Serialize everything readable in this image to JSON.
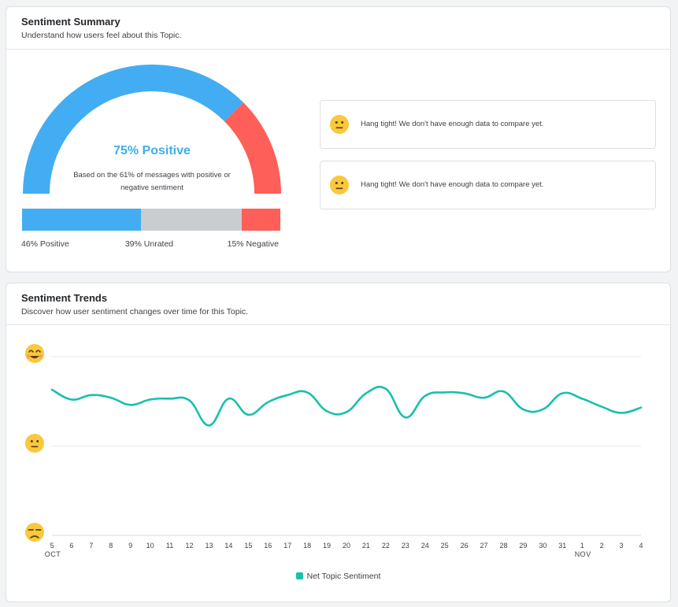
{
  "summary": {
    "title": "Sentiment Summary",
    "subtitle": "Understand how users feel about this Topic.",
    "gauge": {
      "positive_fraction": 0.75,
      "value_label": "75% Positive",
      "description": "Based on the 61% of messages with positive or negative sentiment",
      "positive_color": "#42adf2",
      "negative_color": "#fe5f58"
    },
    "breakdown": [
      {
        "name": "positive",
        "percent": 46,
        "label": "46% Positive",
        "color": "#42adf2"
      },
      {
        "name": "unrated",
        "percent": 39,
        "label": "39% Unrated",
        "color": "#c9cdcf"
      },
      {
        "name": "negative",
        "percent": 15,
        "label": "15% Negative",
        "color": "#fe5f58"
      }
    ],
    "notices": [
      {
        "icon": "neutral-face-icon",
        "text": "Hang tight! We don't have enough data to compare yet."
      },
      {
        "icon": "neutral-face-icon",
        "text": "Hang tight! We don't have enough data to compare yet."
      }
    ]
  },
  "trends": {
    "title": "Sentiment Trends",
    "subtitle": "Discover how user sentiment changes over time for this Topic.",
    "y_icons": [
      "happy-face-icon",
      "neutral-face-icon",
      "sad-face-icon"
    ],
    "legend_label": "Net Topic Sentiment",
    "line_color": "#19c0ac"
  },
  "chart_data": {
    "type": "line",
    "title": "",
    "xlabel": "",
    "ylabel": "",
    "ylim": [
      -1,
      1
    ],
    "grid": true,
    "legend": "bottom-center",
    "x": [
      "5",
      "6",
      "7",
      "8",
      "9",
      "10",
      "11",
      "12",
      "13",
      "14",
      "15",
      "16",
      "17",
      "18",
      "19",
      "20",
      "21",
      "22",
      "23",
      "24",
      "25",
      "26",
      "27",
      "28",
      "29",
      "30",
      "31",
      "1",
      "2",
      "3",
      "4"
    ],
    "month_labels": [
      {
        "tick": "5",
        "label": "OCT"
      },
      {
        "tick": "1",
        "label": "NOV"
      }
    ],
    "series": [
      {
        "name": "Net Topic Sentiment",
        "values": [
          0.63,
          0.52,
          0.57,
          0.54,
          0.46,
          0.52,
          0.53,
          0.51,
          0.23,
          0.53,
          0.35,
          0.49,
          0.57,
          0.6,
          0.39,
          0.38,
          0.59,
          0.64,
          0.32,
          0.56,
          0.6,
          0.59,
          0.54,
          0.61,
          0.41,
          0.41,
          0.59,
          0.53,
          0.44,
          0.37,
          0.43
        ]
      }
    ]
  }
}
